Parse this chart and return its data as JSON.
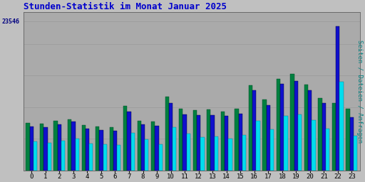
{
  "title": "Stunden-Statistik im Monat Januar 2025",
  "ylabel_right": "Seiten / Dateien / Anfragen",
  "ytick_label": "23546",
  "ytick_value": 23546,
  "hours": [
    0,
    1,
    2,
    3,
    4,
    5,
    6,
    7,
    8,
    9,
    10,
    11,
    12,
    13,
    14,
    15,
    16,
    17,
    18,
    19,
    20,
    21,
    22,
    23
  ],
  "seiten": [
    7500,
    7400,
    7800,
    8100,
    7200,
    6900,
    6800,
    10200,
    7900,
    7700,
    11700,
    9700,
    9500,
    9600,
    9300,
    9700,
    13500,
    11200,
    14500,
    15200,
    13600,
    11400,
    10700,
    9700
  ],
  "dateien": [
    6900,
    6800,
    7300,
    7700,
    6600,
    6400,
    6300,
    9300,
    7300,
    7100,
    10700,
    8900,
    8700,
    8800,
    8600,
    9000,
    12700,
    10300,
    13700,
    14100,
    12700,
    10600,
    22800,
    8400
  ],
  "anfragen": [
    4600,
    4400,
    4700,
    5100,
    4300,
    4100,
    4000,
    6000,
    4900,
    4100,
    6800,
    5800,
    5300,
    5400,
    5100,
    5600,
    7900,
    6500,
    8600,
    8900,
    8000,
    6600,
    14000,
    5500
  ],
  "color_seiten": "#008040",
  "color_dateien": "#1010CC",
  "color_anfragen": "#00DDEE",
  "bg_color": "#C0C0C0",
  "plot_bg_color": "#AAAAAA",
  "title_color": "#0000CC",
  "ylabel_color": "#008080",
  "ytick_color": "#000080",
  "grid_color": "#999999",
  "bar_width": 0.27,
  "ylim_max": 25000
}
